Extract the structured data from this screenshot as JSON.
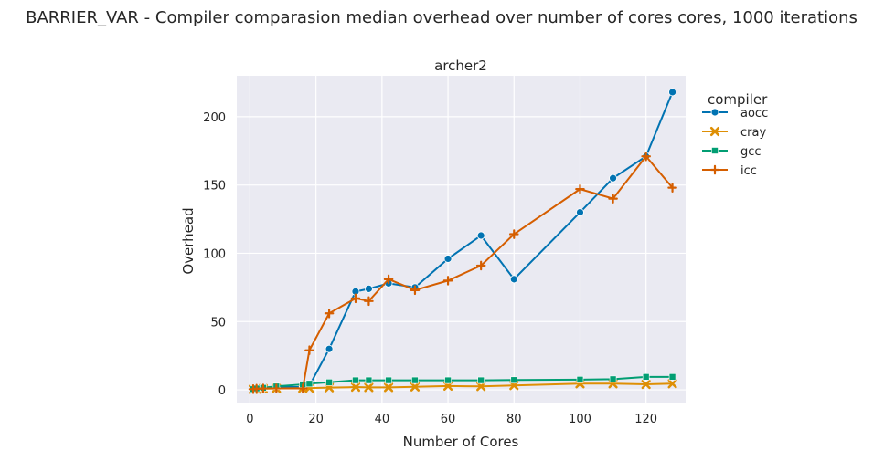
{
  "chart_data": {
    "type": "line",
    "title": "BARRIER_VAR - Compiler comparasion median overhead over number of cores cores, 1000 iterations",
    "subtitle": "archer2",
    "xlabel": "Number of Cores",
    "ylabel": "Overhead",
    "xlim": [
      -4,
      132
    ],
    "ylim": [
      -10,
      230
    ],
    "xticks": [
      0,
      20,
      40,
      60,
      80,
      100,
      120
    ],
    "yticks": [
      0,
      50,
      100,
      150,
      200
    ],
    "grid": true,
    "legend": {
      "title": "compiler",
      "placement": "outside-right"
    },
    "series": [
      {
        "name": "aocc",
        "color": "#0173b2",
        "marker": "circle",
        "x": [
          1,
          2,
          4,
          8,
          16,
          18,
          24,
          32,
          36,
          42,
          50,
          60,
          70,
          80,
          100,
          110,
          120,
          128
        ],
        "y": [
          0.5,
          1,
          1.5,
          2,
          2,
          3,
          30,
          72,
          74,
          78,
          75,
          96,
          113,
          81,
          130,
          155,
          171,
          218
        ]
      },
      {
        "name": "cray",
        "color": "#de8f05",
        "marker": "x",
        "x": [
          1,
          2,
          4,
          8,
          16,
          18,
          24,
          32,
          36,
          42,
          50,
          60,
          70,
          80,
          100,
          110,
          120,
          128
        ],
        "y": [
          0.3,
          0.5,
          0.8,
          1,
          1.2,
          1.3,
          1.6,
          2,
          1.8,
          1.8,
          2.2,
          2.8,
          2.5,
          3.2,
          4.5,
          4.5,
          4,
          4.5
        ]
      },
      {
        "name": "gcc",
        "color": "#029e73",
        "marker": "square",
        "x": [
          1,
          2,
          4,
          8,
          16,
          18,
          24,
          32,
          36,
          42,
          50,
          60,
          70,
          80,
          100,
          110,
          120,
          128
        ],
        "y": [
          0.5,
          1,
          1.5,
          2.5,
          4,
          4.5,
          5.5,
          7,
          7,
          7,
          7,
          7,
          7,
          7.2,
          7.5,
          7.8,
          9.5,
          9.5
        ]
      },
      {
        "name": "icc",
        "color": "#d55e00",
        "marker": "plus",
        "x": [
          1,
          2,
          4,
          8,
          16,
          18,
          24,
          32,
          36,
          42,
          50,
          60,
          70,
          80,
          100,
          110,
          120,
          128
        ],
        "y": [
          0.5,
          0.8,
          1,
          1,
          1,
          29,
          56,
          67,
          65,
          81,
          73,
          80,
          91,
          114,
          147,
          140,
          171,
          148
        ]
      }
    ]
  }
}
